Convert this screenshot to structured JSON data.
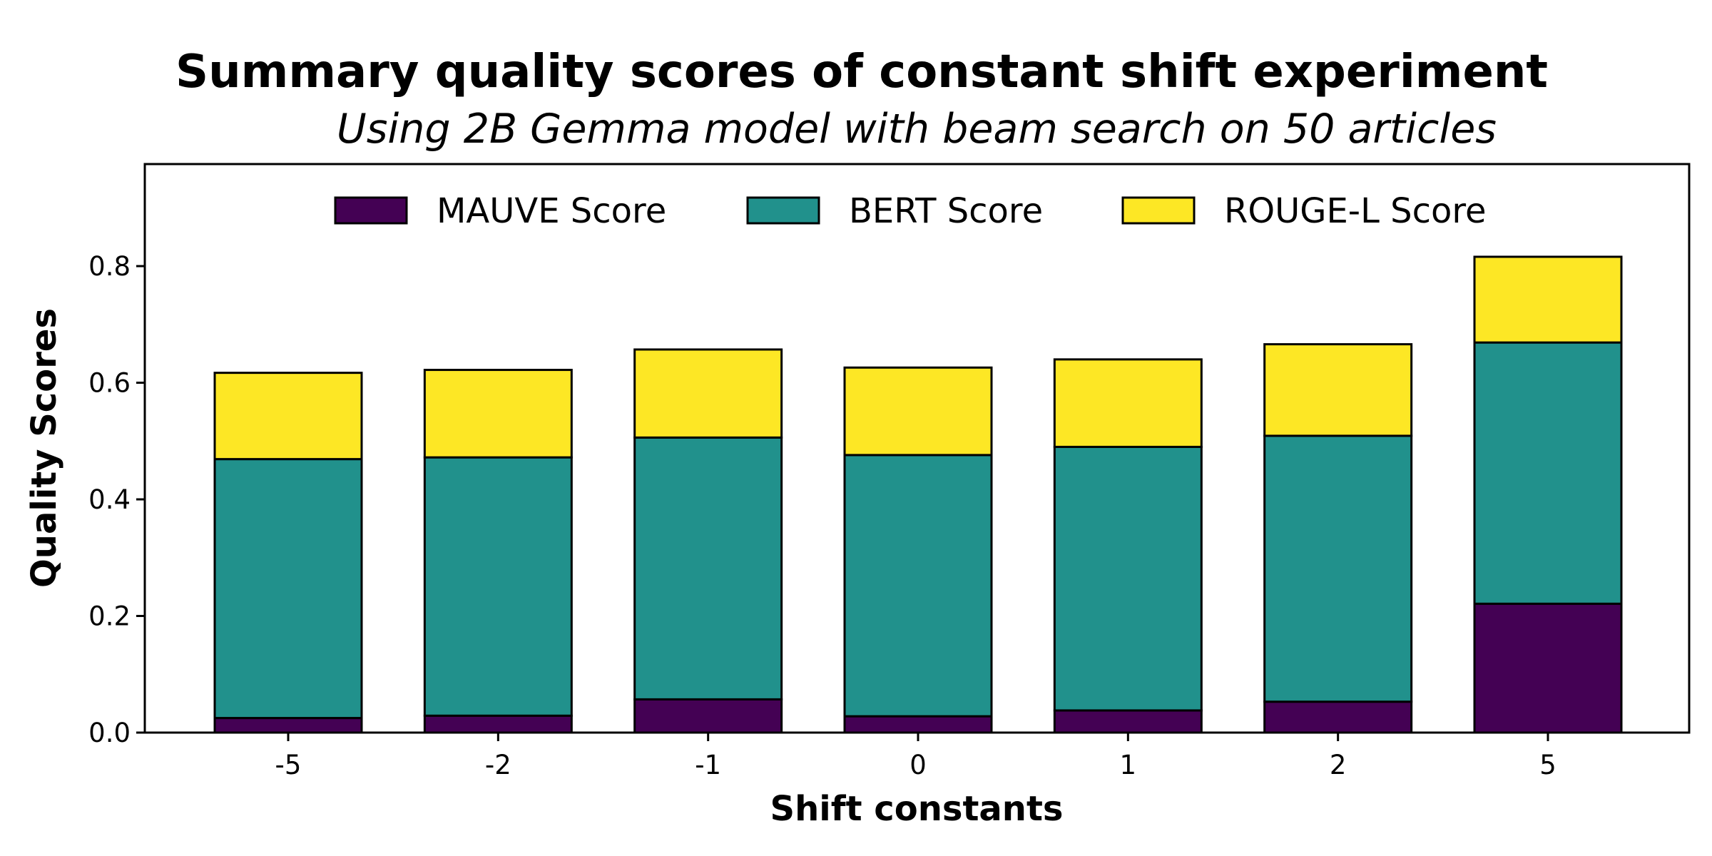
{
  "chart_data": {
    "type": "bar",
    "stacked": true,
    "title": "Summary quality scores of constant shift experiment",
    "subtitle": "Using 2B Gemma model with beam search on 50 articles",
    "xlabel": "Shift constants",
    "ylabel": "Quality Scores",
    "categories": [
      "-5",
      "-2",
      "-1",
      "0",
      "1",
      "2",
      "5"
    ],
    "ylim": [
      0,
      0.975
    ],
    "yticks": [
      0.0,
      0.2,
      0.4,
      0.6,
      0.8
    ],
    "ytick_labels": [
      "0.0",
      "0.2",
      "0.4",
      "0.6",
      "0.8"
    ],
    "legend_position": "top-center",
    "grid": false,
    "series": [
      {
        "name": "MAUVE Score",
        "color": "#440154",
        "values": [
          0.025,
          0.029,
          0.057,
          0.028,
          0.038,
          0.053,
          0.221
        ]
      },
      {
        "name": "BERT Score",
        "color": "#21918c",
        "values": [
          0.444,
          0.443,
          0.449,
          0.448,
          0.452,
          0.456,
          0.448
        ]
      },
      {
        "name": "ROUGE-L Score",
        "color": "#fde725",
        "values": [
          0.148,
          0.15,
          0.151,
          0.15,
          0.15,
          0.157,
          0.147
        ]
      }
    ]
  }
}
